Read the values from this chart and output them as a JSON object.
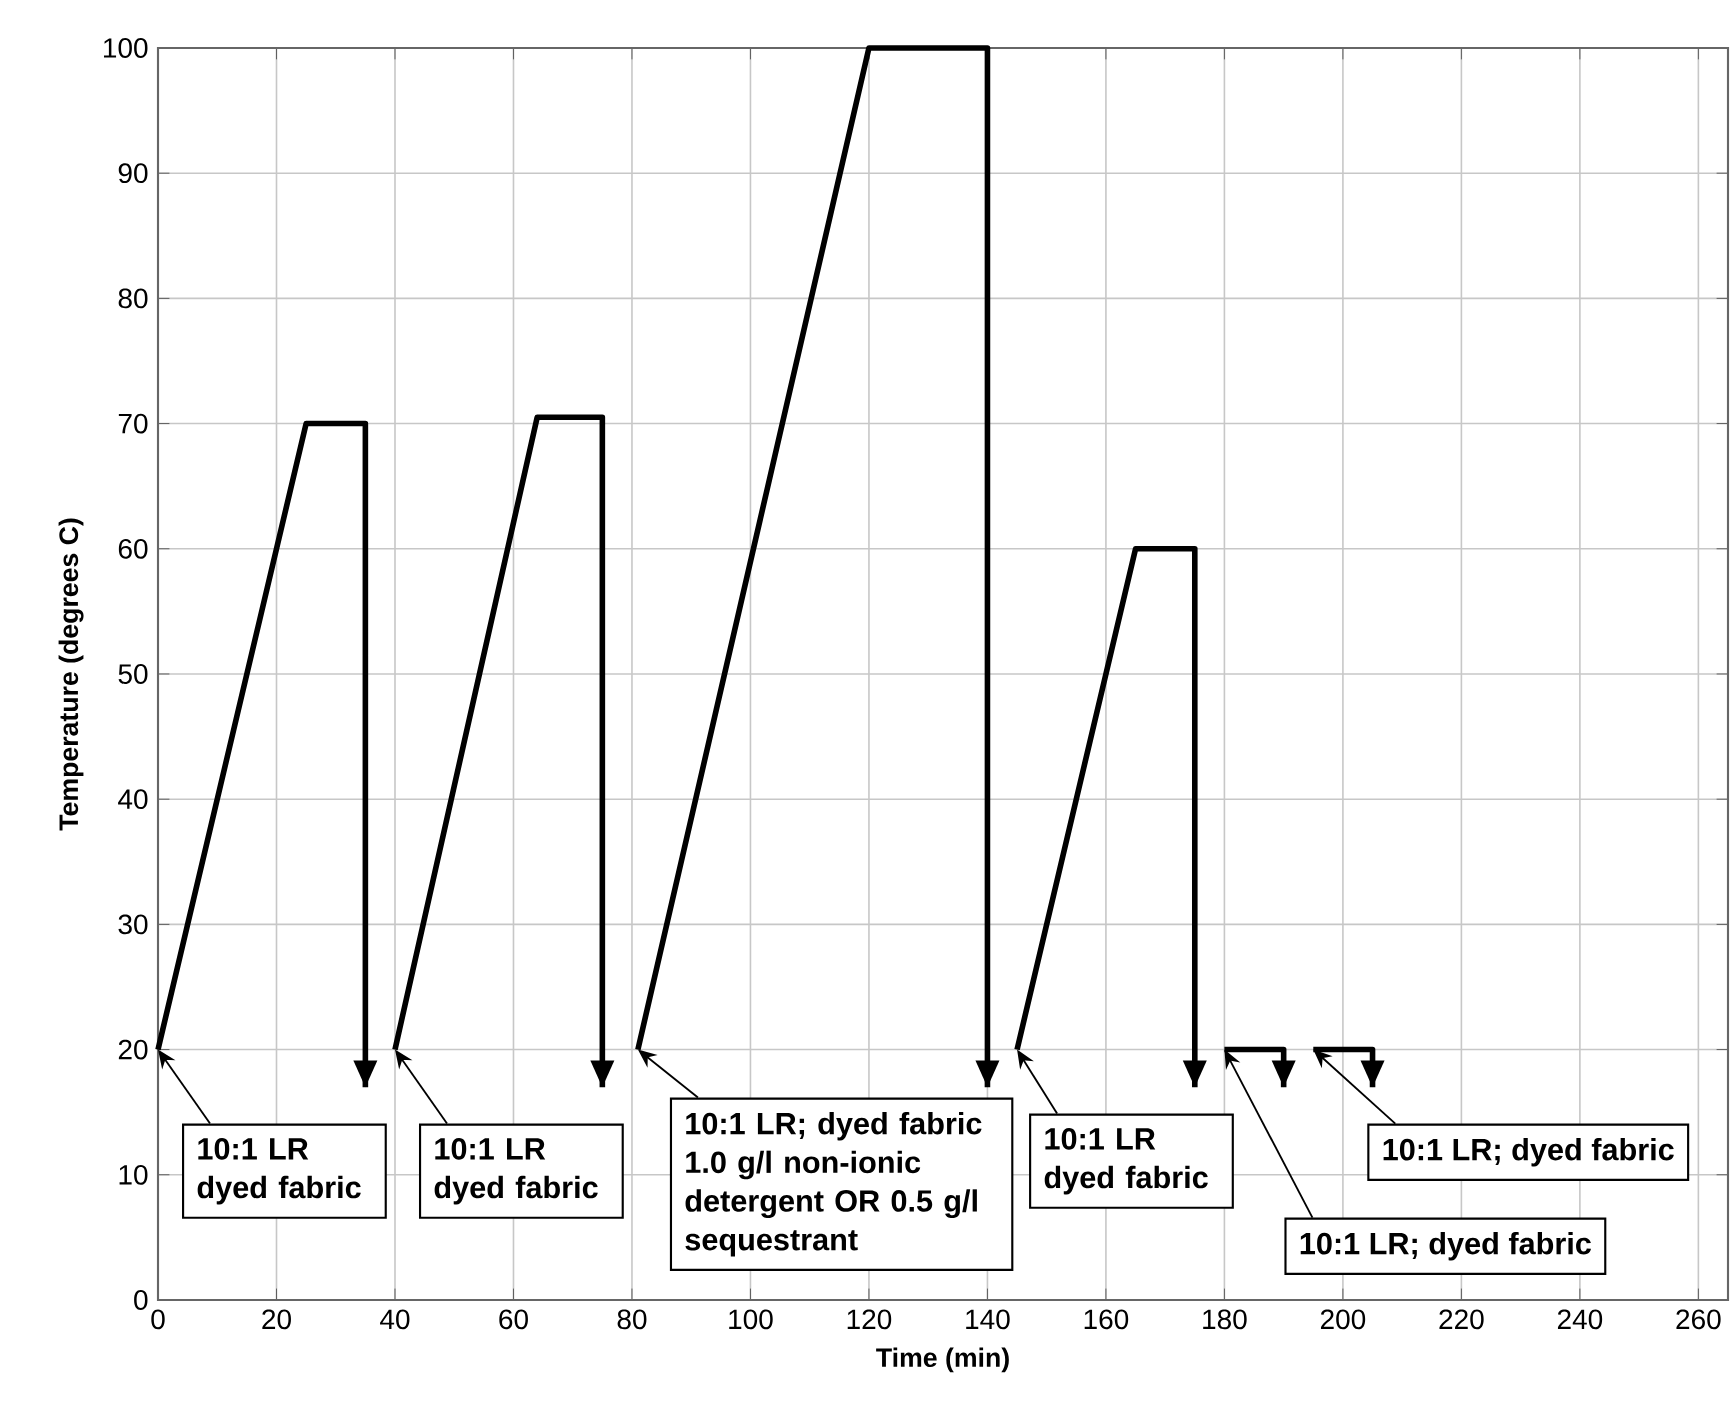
{
  "chart_data": {
    "type": "line",
    "xlabel": "Time (min)",
    "ylabel": "Temperature (degrees C)",
    "xlim": [
      0,
      265
    ],
    "ylim": [
      0,
      100
    ],
    "xticks": [
      0,
      20,
      40,
      60,
      80,
      100,
      120,
      140,
      160,
      180,
      200,
      220,
      240,
      260
    ],
    "yticks": [
      0,
      10,
      20,
      30,
      40,
      50,
      60,
      70,
      80,
      90,
      100
    ],
    "grid": true,
    "series": [
      {
        "color": "#000000",
        "x": [
          0,
          25,
          35,
          35
        ],
        "values": [
          20,
          70,
          70,
          17
        ]
      },
      {
        "color": "#000000",
        "x": [
          40,
          64,
          75,
          75
        ],
        "values": [
          20,
          70.5,
          70.5,
          17
        ]
      },
      {
        "color": "#000000",
        "x": [
          81,
          120,
          140,
          140
        ],
        "values": [
          20,
          100,
          100,
          17
        ]
      },
      {
        "color": "#000000",
        "x": [
          145,
          165,
          175,
          175
        ],
        "values": [
          20,
          60,
          60,
          17
        ]
      },
      {
        "color": "#000000",
        "x": [
          180,
          190,
          190
        ],
        "values": [
          20,
          20,
          17
        ]
      },
      {
        "color": "#000000",
        "x": [
          195,
          205,
          205
        ],
        "values": [
          20,
          20,
          17
        ]
      }
    ],
    "annotations": [
      {
        "text": "10:1 LR dyed fabric",
        "x": 0,
        "y": 20
      },
      {
        "text": "10:1 LR dyed fabric",
        "x": 40,
        "y": 20
      },
      {
        "text": "10:1 LR; dyed fabric 1.0 g/l non-ionic detergent OR 0.5 g/l sequestrant",
        "x": 81,
        "y": 20
      },
      {
        "text": "10:1 LR dyed fabric",
        "x": 145,
        "y": 20
      },
      {
        "text": "10:1 LR; dyed fabric",
        "x": 180,
        "y": 20
      },
      {
        "text": "10:1 LR; dyed fabric",
        "x": 195,
        "y": 20
      }
    ]
  }
}
